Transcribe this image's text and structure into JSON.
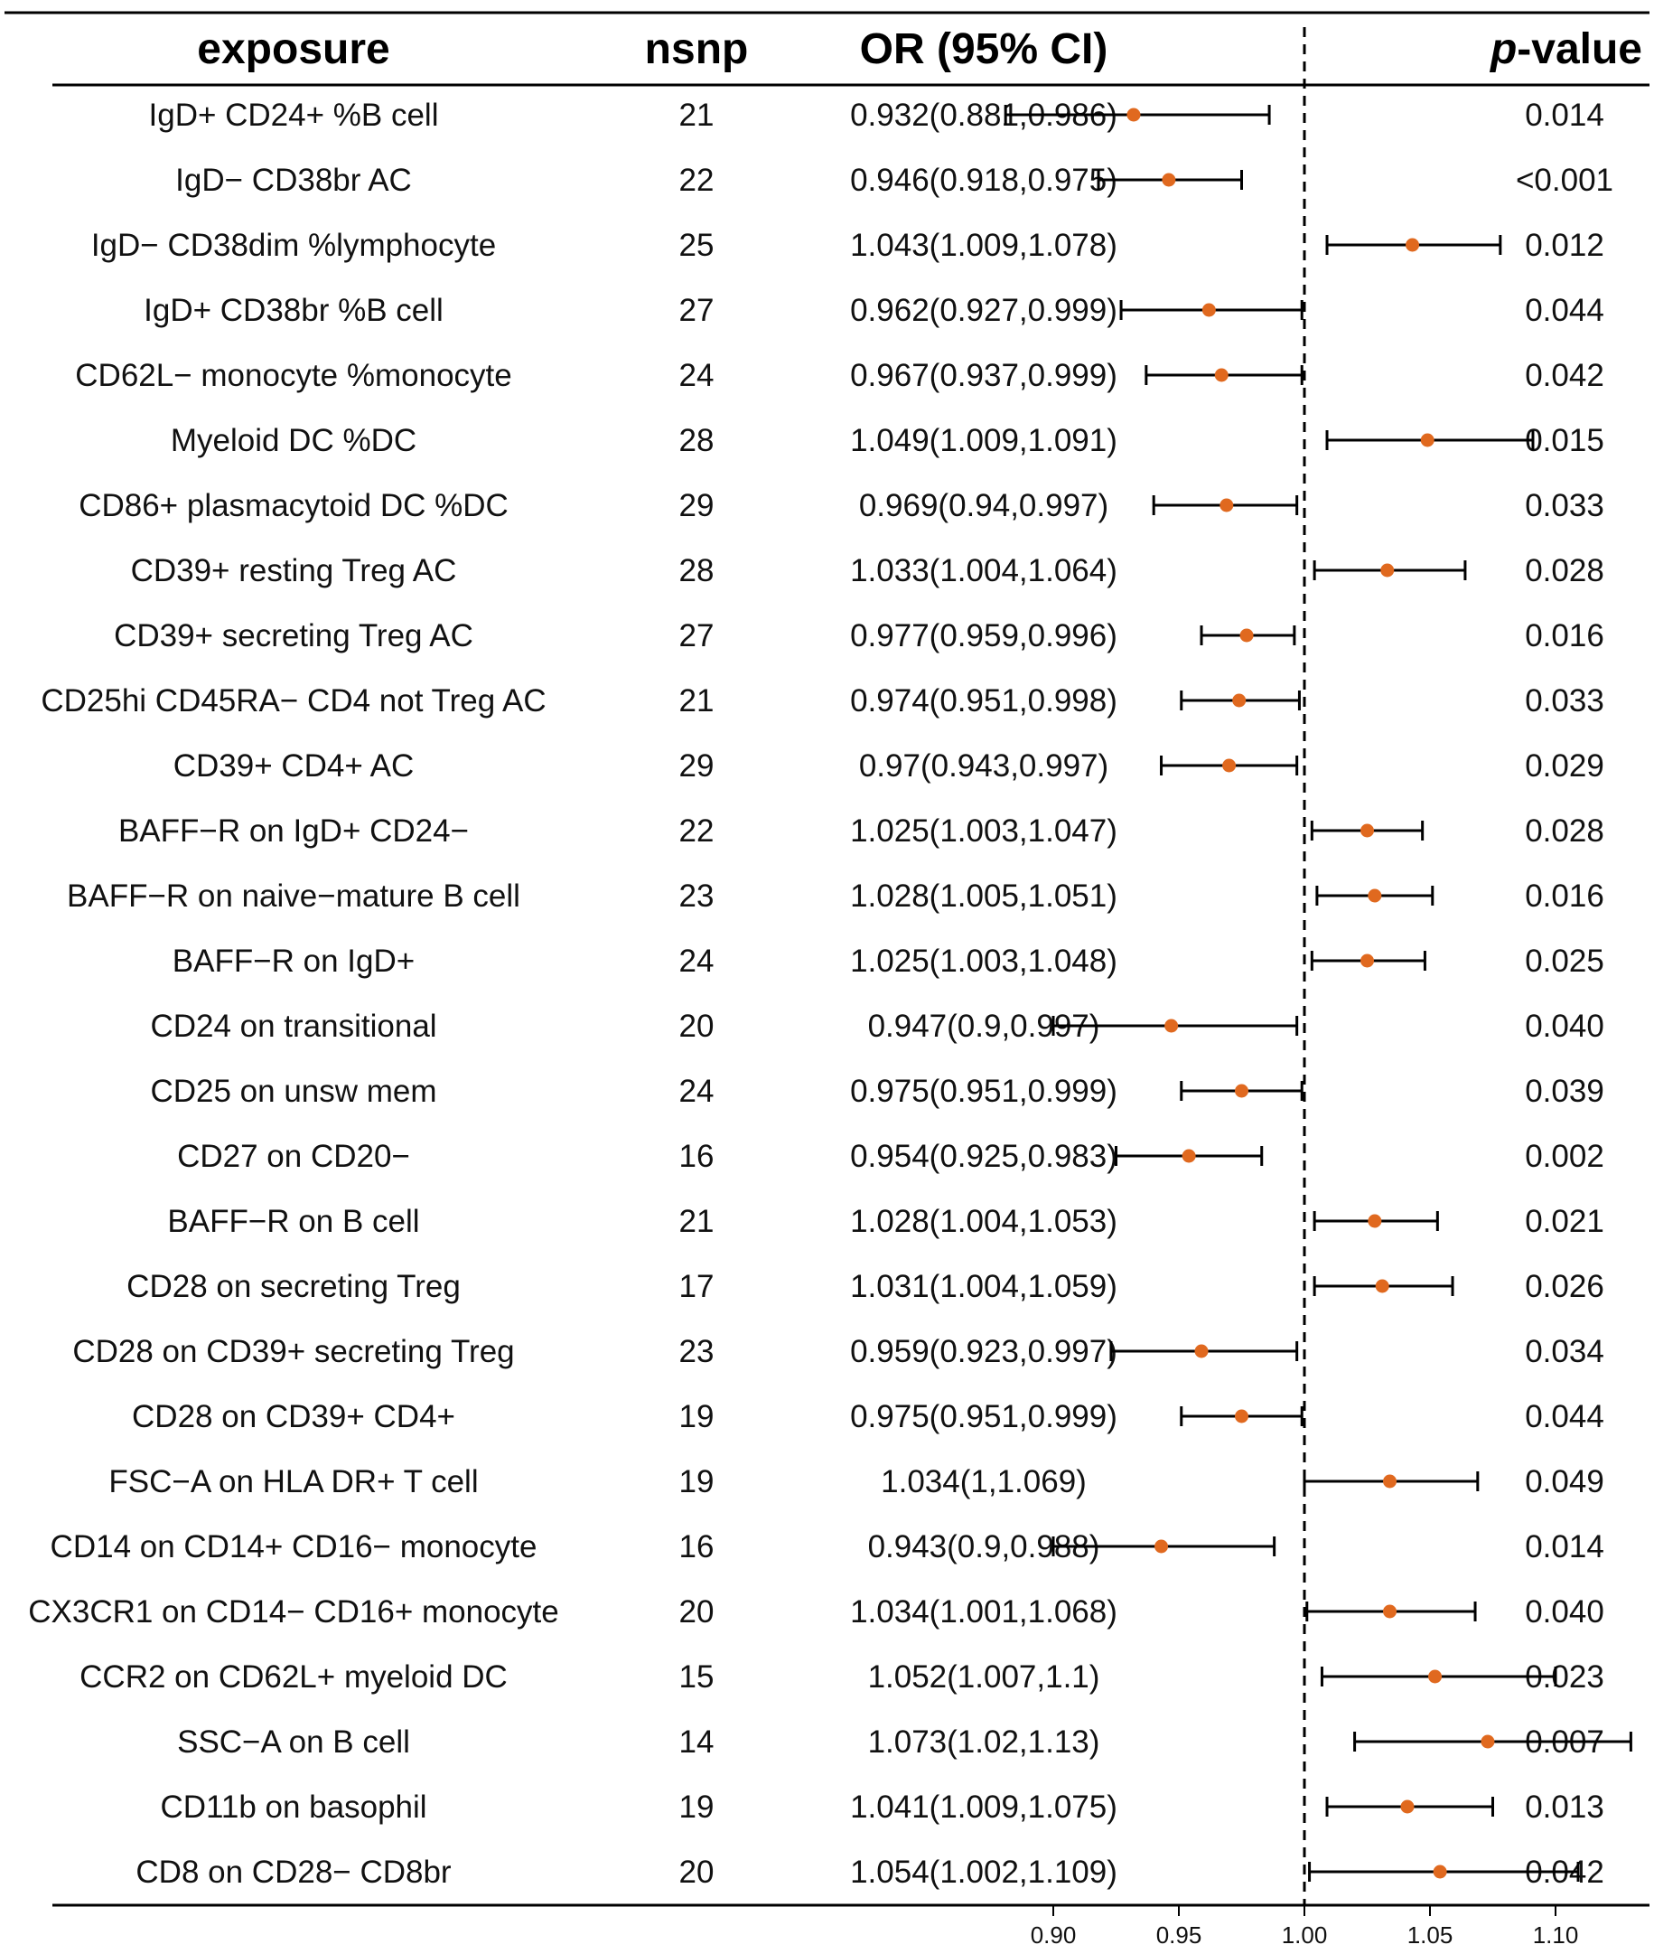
{
  "chart_data": {
    "type": "forest",
    "columns": {
      "exposure": "exposure",
      "nsnp": "nsnp",
      "or_ci": "OR (95% CI)",
      "pvalue_italic": "p",
      "pvalue_rest": "-value"
    },
    "reference_line": 1.0,
    "xlim": [
      0.85,
      1.15
    ],
    "x_ticks": [
      0.9,
      0.95,
      1.0,
      1.05,
      1.1
    ],
    "x_tick_labels": [
      "0.90",
      "0.95",
      "1.00",
      "1.05",
      "1.10"
    ],
    "point_color": "#e0691f",
    "rows": [
      {
        "exposure": "IgD+ CD24+ %B cell",
        "nsnp": "21",
        "ci_text": "0.932(0.881,0.986)",
        "or": 0.932,
        "lo": 0.881,
        "hi": 0.986,
        "p": "0.014"
      },
      {
        "exposure": "IgD− CD38br AC",
        "nsnp": "22",
        "ci_text": "0.946(0.918,0.975)",
        "or": 0.946,
        "lo": 0.918,
        "hi": 0.975,
        "p": "<0.001"
      },
      {
        "exposure": "IgD− CD38dim %lymphocyte",
        "nsnp": "25",
        "ci_text": "1.043(1.009,1.078)",
        "or": 1.043,
        "lo": 1.009,
        "hi": 1.078,
        "p": "0.012"
      },
      {
        "exposure": "IgD+ CD38br %B cell",
        "nsnp": "27",
        "ci_text": "0.962(0.927,0.999)",
        "or": 0.962,
        "lo": 0.927,
        "hi": 0.999,
        "p": "0.044"
      },
      {
        "exposure": "CD62L− monocyte %monocyte",
        "nsnp": "24",
        "ci_text": "0.967(0.937,0.999)",
        "or": 0.967,
        "lo": 0.937,
        "hi": 0.999,
        "p": "0.042"
      },
      {
        "exposure": "Myeloid DC %DC",
        "nsnp": "28",
        "ci_text": "1.049(1.009,1.091)",
        "or": 1.049,
        "lo": 1.009,
        "hi": 1.091,
        "p": "0.015"
      },
      {
        "exposure": "CD86+ plasmacytoid DC %DC",
        "nsnp": "29",
        "ci_text": "0.969(0.94,0.997)",
        "or": 0.969,
        "lo": 0.94,
        "hi": 0.997,
        "p": "0.033"
      },
      {
        "exposure": "CD39+ resting Treg AC",
        "nsnp": "28",
        "ci_text": "1.033(1.004,1.064)",
        "or": 1.033,
        "lo": 1.004,
        "hi": 1.064,
        "p": "0.028"
      },
      {
        "exposure": "CD39+ secreting Treg  AC",
        "nsnp": "27",
        "ci_text": "0.977(0.959,0.996)",
        "or": 0.977,
        "lo": 0.959,
        "hi": 0.996,
        "p": "0.016"
      },
      {
        "exposure": "CD25hi CD45RA− CD4 not Treg AC",
        "nsnp": "21",
        "ci_text": "0.974(0.951,0.998)",
        "or": 0.974,
        "lo": 0.951,
        "hi": 0.998,
        "p": "0.033"
      },
      {
        "exposure": "CD39+ CD4+ AC",
        "nsnp": "29",
        "ci_text": "0.97(0.943,0.997)",
        "or": 0.97,
        "lo": 0.943,
        "hi": 0.997,
        "p": "0.029"
      },
      {
        "exposure": "BAFF−R on IgD+ CD24−",
        "nsnp": "22",
        "ci_text": "1.025(1.003,1.047)",
        "or": 1.025,
        "lo": 1.003,
        "hi": 1.047,
        "p": "0.028"
      },
      {
        "exposure": "BAFF−R on naive−mature B cell",
        "nsnp": "23",
        "ci_text": "1.028(1.005,1.051)",
        "or": 1.028,
        "lo": 1.005,
        "hi": 1.051,
        "p": "0.016"
      },
      {
        "exposure": "BAFF−R on IgD+",
        "nsnp": "24",
        "ci_text": "1.025(1.003,1.048)",
        "or": 1.025,
        "lo": 1.003,
        "hi": 1.048,
        "p": "0.025"
      },
      {
        "exposure": "CD24 on transitional",
        "nsnp": "20",
        "ci_text": "0.947(0.9,0.997)",
        "or": 0.947,
        "lo": 0.9,
        "hi": 0.997,
        "p": "0.040"
      },
      {
        "exposure": "CD25 on unsw mem",
        "nsnp": "24",
        "ci_text": "0.975(0.951,0.999)",
        "or": 0.975,
        "lo": 0.951,
        "hi": 0.999,
        "p": "0.039"
      },
      {
        "exposure": "CD27 on CD20−",
        "nsnp": "16",
        "ci_text": "0.954(0.925,0.983)",
        "or": 0.954,
        "lo": 0.925,
        "hi": 0.983,
        "p": "0.002"
      },
      {
        "exposure": "BAFF−R on B cell",
        "nsnp": "21",
        "ci_text": "1.028(1.004,1.053)",
        "or": 1.028,
        "lo": 1.004,
        "hi": 1.053,
        "p": "0.021"
      },
      {
        "exposure": "CD28 on secreting Treg",
        "nsnp": "17",
        "ci_text": "1.031(1.004,1.059)",
        "or": 1.031,
        "lo": 1.004,
        "hi": 1.059,
        "p": "0.026"
      },
      {
        "exposure": "CD28 on CD39+ secreting Treg",
        "nsnp": "23",
        "ci_text": "0.959(0.923,0.997)",
        "or": 0.959,
        "lo": 0.923,
        "hi": 0.997,
        "p": "0.034"
      },
      {
        "exposure": "CD28 on CD39+ CD4+",
        "nsnp": "19",
        "ci_text": "0.975(0.951,0.999)",
        "or": 0.975,
        "lo": 0.951,
        "hi": 0.999,
        "p": "0.044"
      },
      {
        "exposure": "FSC−A on HLA DR+ T cell",
        "nsnp": "19",
        "ci_text": "1.034(1,1.069)",
        "or": 1.034,
        "lo": 1.0,
        "hi": 1.069,
        "p": "0.049"
      },
      {
        "exposure": "CD14 on CD14+ CD16− monocyte",
        "nsnp": "16",
        "ci_text": "0.943(0.9,0.988)",
        "or": 0.943,
        "lo": 0.9,
        "hi": 0.988,
        "p": "0.014"
      },
      {
        "exposure": "CX3CR1 on CD14− CD16+ monocyte",
        "nsnp": "20",
        "ci_text": "1.034(1.001,1.068)",
        "or": 1.034,
        "lo": 1.001,
        "hi": 1.068,
        "p": "0.040"
      },
      {
        "exposure": "CCR2 on CD62L+ myeloid DC",
        "nsnp": "15",
        "ci_text": "1.052(1.007,1.1)",
        "or": 1.052,
        "lo": 1.007,
        "hi": 1.1,
        "p": "0.023"
      },
      {
        "exposure": "SSC−A on B cell",
        "nsnp": "14",
        "ci_text": "1.073(1.02,1.13)",
        "or": 1.073,
        "lo": 1.02,
        "hi": 1.13,
        "p": "0.007"
      },
      {
        "exposure": "CD11b on basophil",
        "nsnp": "19",
        "ci_text": "1.041(1.009,1.075)",
        "or": 1.041,
        "lo": 1.009,
        "hi": 1.075,
        "p": "0.013"
      },
      {
        "exposure": "CD8 on CD28− CD8br",
        "nsnp": "20",
        "ci_text": "1.054(1.002,1.109)",
        "or": 1.054,
        "lo": 1.002,
        "hi": 1.109,
        "p": "0.042"
      }
    ]
  }
}
